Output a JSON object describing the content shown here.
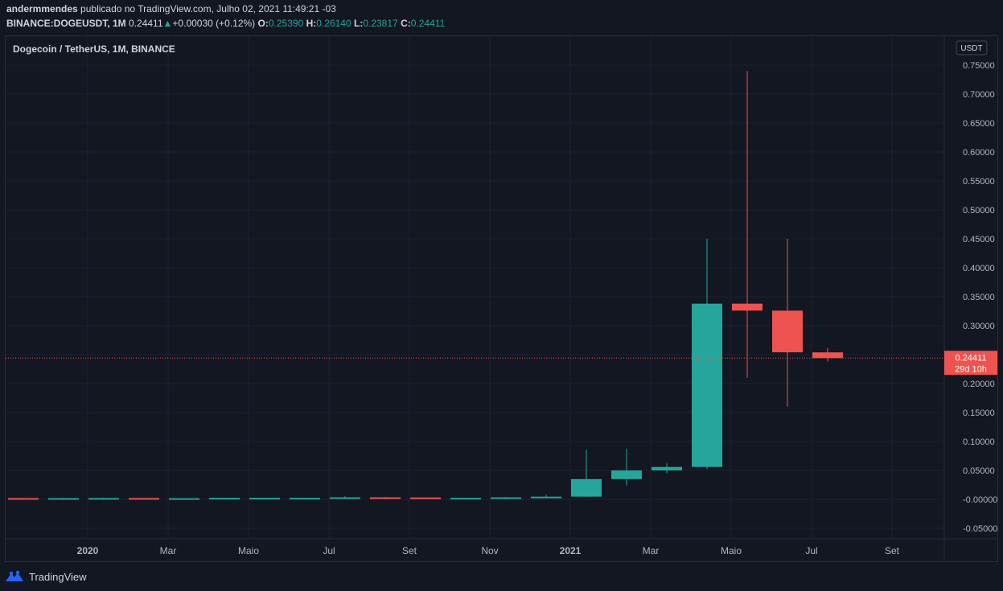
{
  "header": {
    "author": "andermmendes",
    "published_text": "publicado no TradingView.com, Julho 02, 2021 11:49:21 -03",
    "symbol": "BINANCE:DOGEUSDT, 1M",
    "price": "0.24411",
    "change_arrow": "▲",
    "change": "+0.00030 (+0.12%)",
    "o_label": "O:",
    "o_value": "0.25390",
    "h_label": "H:",
    "h_value": "0.26140",
    "l_label": "L:",
    "l_value": "0.23817",
    "c_label": "C:",
    "c_value": "0.24411"
  },
  "chart_title": "Dogecoin / TetherUS, 1M, BINANCE",
  "currency_badge": "USDT",
  "last_price_label": "0.24411",
  "countdown_label": "29d 10h",
  "footer": {
    "brand": "TradingView"
  },
  "colors": {
    "up": "#26a69a",
    "down": "#ef5350",
    "background": "#131722",
    "grid": "#1e222d"
  },
  "chart_data": {
    "type": "candlestick",
    "symbol": "DOGEUSDT",
    "interval": "1M",
    "y_ticks": [
      "0.75000",
      "0.70000",
      "0.65000",
      "0.60000",
      "0.55000",
      "0.50000",
      "0.45000",
      "0.40000",
      "0.35000",
      "0.30000",
      "0.25000",
      "0.20000",
      "0.15000",
      "0.10000",
      "0.05000",
      "-0.00000",
      "-0.05000"
    ],
    "y_tick_values": [
      0.75,
      0.7,
      0.65,
      0.6,
      0.55,
      0.5,
      0.45,
      0.4,
      0.35,
      0.3,
      0.25,
      0.2,
      0.15,
      0.1,
      0.05,
      0.0,
      -0.05
    ],
    "ylim": [
      -0.068,
      0.8
    ],
    "x_ticks": [
      {
        "label": "2020",
        "index": 2,
        "bold": true
      },
      {
        "label": "Mar",
        "index": 4
      },
      {
        "label": "Maio",
        "index": 6
      },
      {
        "label": "Jul",
        "index": 8
      },
      {
        "label": "Set",
        "index": 10
      },
      {
        "label": "Nov",
        "index": 12
      },
      {
        "label": "2021",
        "index": 14,
        "bold": true
      },
      {
        "label": "Mar",
        "index": 16
      },
      {
        "label": "Maio",
        "index": 18
      },
      {
        "label": "Jul",
        "index": 20
      },
      {
        "label": "Set",
        "index": 22
      }
    ],
    "candles": [
      {
        "period": "2019-12",
        "o": 0.0022,
        "h": 0.0024,
        "l": 0.0019,
        "c": 0.002
      },
      {
        "period": "2020-01",
        "o": 0.002,
        "h": 0.0026,
        "l": 0.0019,
        "c": 0.0021
      },
      {
        "period": "2020-02",
        "o": 0.0021,
        "h": 0.003,
        "l": 0.002,
        "c": 0.0023
      },
      {
        "period": "2020-03",
        "o": 0.0023,
        "h": 0.0026,
        "l": 0.0013,
        "c": 0.0019
      },
      {
        "period": "2020-04",
        "o": 0.0019,
        "h": 0.0022,
        "l": 0.0017,
        "c": 0.002
      },
      {
        "period": "2020-05",
        "o": 0.002,
        "h": 0.0028,
        "l": 0.0018,
        "c": 0.0026
      },
      {
        "period": "2020-06",
        "o": 0.0026,
        "h": 0.0027,
        "l": 0.0024,
        "c": 0.0026
      },
      {
        "period": "2020-07",
        "o": 0.0026,
        "h": 0.0026,
        "l": 0.0025,
        "c": 0.0026
      },
      {
        "period": "2020-08",
        "o": 0.0026,
        "h": 0.0055,
        "l": 0.0025,
        "c": 0.0035
      },
      {
        "period": "2020-09",
        "o": 0.0035,
        "h": 0.004,
        "l": 0.003,
        "c": 0.0033
      },
      {
        "period": "2020-10",
        "o": 0.0033,
        "h": 0.0035,
        "l": 0.003,
        "c": 0.0026
      },
      {
        "period": "2020-11",
        "o": 0.0026,
        "h": 0.003,
        "l": 0.0025,
        "c": 0.0026
      },
      {
        "period": "2020-12",
        "o": 0.0026,
        "h": 0.004,
        "l": 0.0025,
        "c": 0.0035
      },
      {
        "period": "2021-01",
        "o": 0.0047,
        "h": 0.008,
        "l": 0.003,
        "c": 0.0047
      },
      {
        "period": "2021-02",
        "o": 0.0047,
        "h": 0.086,
        "l": 0.0045,
        "c": 0.035
      },
      {
        "period": "2021-03",
        "o": 0.035,
        "h": 0.087,
        "l": 0.024,
        "c": 0.05
      },
      {
        "period": "2021-04",
        "o": 0.05,
        "h": 0.062,
        "l": 0.045,
        "c": 0.056
      },
      {
        "period": "2021-05",
        "o": 0.056,
        "h": 0.45,
        "l": 0.052,
        "c": 0.338
      },
      {
        "period": "2021-06",
        "o": 0.338,
        "h": 0.74,
        "l": 0.21,
        "c": 0.326
      },
      {
        "period": "2021-07",
        "o": 0.326,
        "h": 0.45,
        "l": 0.16,
        "c": 0.254
      },
      {
        "period": "2021-08",
        "o": 0.2539,
        "h": 0.2614,
        "l": 0.2382,
        "c": 0.2441
      }
    ]
  }
}
